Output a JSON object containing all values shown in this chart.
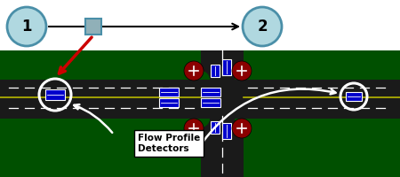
{
  "bg_color": "#ffffff",
  "road_color": "#1a1a1a",
  "green_color": "#005000",
  "yellow_line_color": "#b8b800",
  "blue_color": "#0000cc",
  "white": "#ffffff",
  "red_color": "#cc0000",
  "darkred": "#8b0000",
  "node_fill": "#b0d8e0",
  "node_edge": "#4a8fa8",
  "sq_fill": "#90b0b8",
  "sq_edge": "#4a8fa8",
  "label_text": "Flow Profile\nDetectors",
  "node1_label": "1",
  "node2_label": "2",
  "fig_w": 4.5,
  "fig_h": 2.0,
  "dpi": 100
}
